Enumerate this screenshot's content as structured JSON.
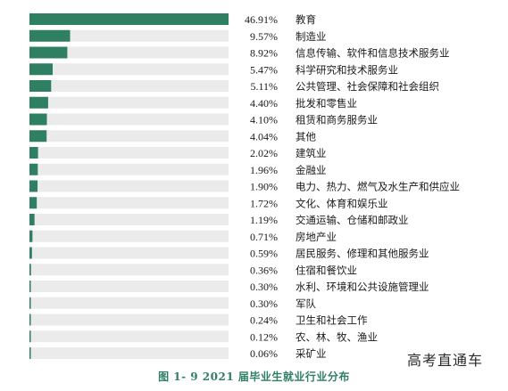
{
  "chart_data": {
    "type": "bar",
    "orientation": "horizontal",
    "categories": [
      "教育",
      "制造业",
      "信息传输、软件和信息技术服务业",
      "科学研究和技术服务业",
      "公共管理、社会保障和社会组织",
      "批发和零售业",
      "租赁和商务服务业",
      "其他",
      "建筑业",
      "金融业",
      "电力、热力、燃气及水生产和供应业",
      "文化、体育和娱乐业",
      "交通运输、仓储和邮政业",
      "房地产业",
      "居民服务、修理和其他服务业",
      "住宿和餐饮业",
      "水利、环境和公共设施管理业",
      "军队",
      "卫生和社会工作",
      "农、林、牧、渔业",
      "采矿业"
    ],
    "values": [
      46.91,
      9.57,
      8.92,
      5.47,
      5.11,
      4.4,
      4.1,
      4.04,
      2.02,
      1.96,
      1.9,
      1.72,
      1.19,
      0.71,
      0.59,
      0.36,
      0.3,
      0.3,
      0.24,
      0.12,
      0.06
    ],
    "value_labels": [
      "46.91%",
      "9.57%",
      "8.92%",
      "5.47%",
      "5.11%",
      "4.40%",
      "4.10%",
      "4.04%",
      "2.02%",
      "1.96%",
      "1.90%",
      "1.72%",
      "1.19%",
      "0.71%",
      "0.59%",
      "0.36%",
      "0.30%",
      "0.30%",
      "0.24%",
      "0.12%",
      "0.06%"
    ],
    "xlim": [
      0,
      46.91
    ],
    "unit": "%",
    "title": "图 1- 9 2021 届毕业生就业行业分布",
    "grid": false,
    "legend": "none"
  },
  "colors": {
    "bar": "#2f7f63",
    "track": "#ebebeb",
    "caption": "#2f7f63",
    "text": "#1a1a1a"
  },
  "caption": "图 1- 9 2021 届毕业生就业行业分布",
  "watermark": "高考直通车"
}
